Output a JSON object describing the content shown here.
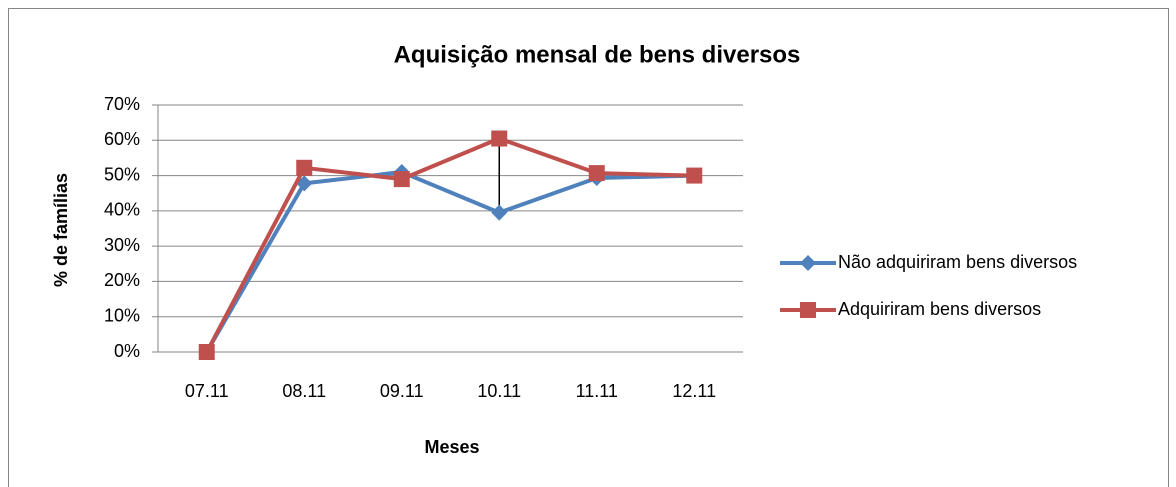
{
  "chart_data": {
    "type": "line",
    "title": "Aquisição mensal de bens diversos",
    "x_label": "Meses",
    "y_label": "% de famílias",
    "categories": [
      "07.11",
      "08.11",
      "09.11",
      "10.11",
      "11.11",
      "12.11"
    ],
    "series": [
      {
        "name": "Não adquiriram bens diversos",
        "color": "#4f81bd",
        "marker": "diamond",
        "values": [
          0,
          47.8,
          51,
          39.5,
          49.3,
          50
        ]
      },
      {
        "name": "Adquiriram bens diversos",
        "color": "#c0504d",
        "marker": "square",
        "values": [
          0,
          52.2,
          49,
          60.5,
          50.7,
          50
        ]
      }
    ],
    "ylim": [
      0,
      70
    ],
    "yticks": [
      {
        "value": 0,
        "label": "0%"
      },
      {
        "value": 10,
        "label": "10%"
      },
      {
        "value": 20,
        "label": "20%"
      },
      {
        "value": 30,
        "label": "30%"
      },
      {
        "value": 40,
        "label": "40%"
      },
      {
        "value": 50,
        "label": "50%"
      },
      {
        "value": 60,
        "label": "60%"
      },
      {
        "value": 70,
        "label": "70%"
      }
    ],
    "grid": true,
    "legend": "right",
    "high_low_lines": true
  }
}
